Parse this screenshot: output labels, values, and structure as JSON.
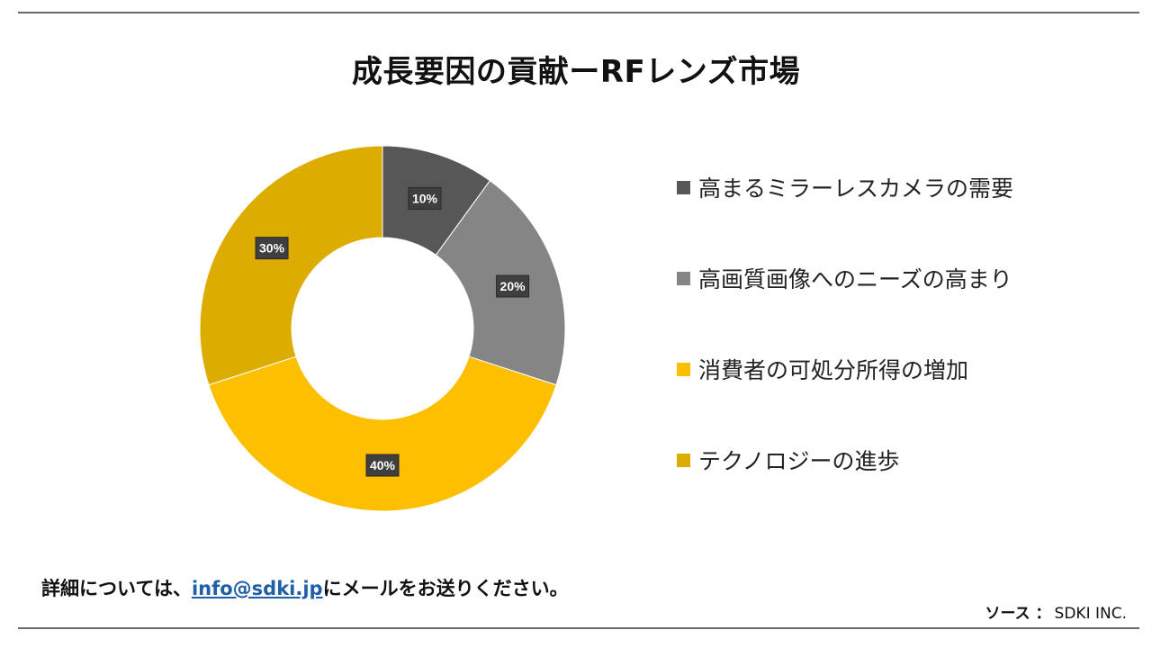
{
  "title": "成長要因の貢献ーRFレンズ市場",
  "chart_data": {
    "type": "pie",
    "categories": [
      "高まるミラーレスカメラの需要",
      "高画質画像へのニーズの高まり",
      "消費者の可処分所得の増加",
      "テクノロジーの進歩"
    ],
    "values": [
      10,
      20,
      40,
      30
    ],
    "data_labels": [
      "10%",
      "20%",
      "40%",
      "30%"
    ],
    "colors": [
      "#575757",
      "#858585",
      "#FDBF00",
      "#DDAC00"
    ],
    "donut": true,
    "legend_position": "right"
  },
  "footer": {
    "contact_prefix": "詳細については、",
    "email": "info@sdki.jp",
    "contact_suffix": "にメールをお送りください。",
    "source_label": "ソース ：",
    "source_value": "SDKI INC."
  }
}
